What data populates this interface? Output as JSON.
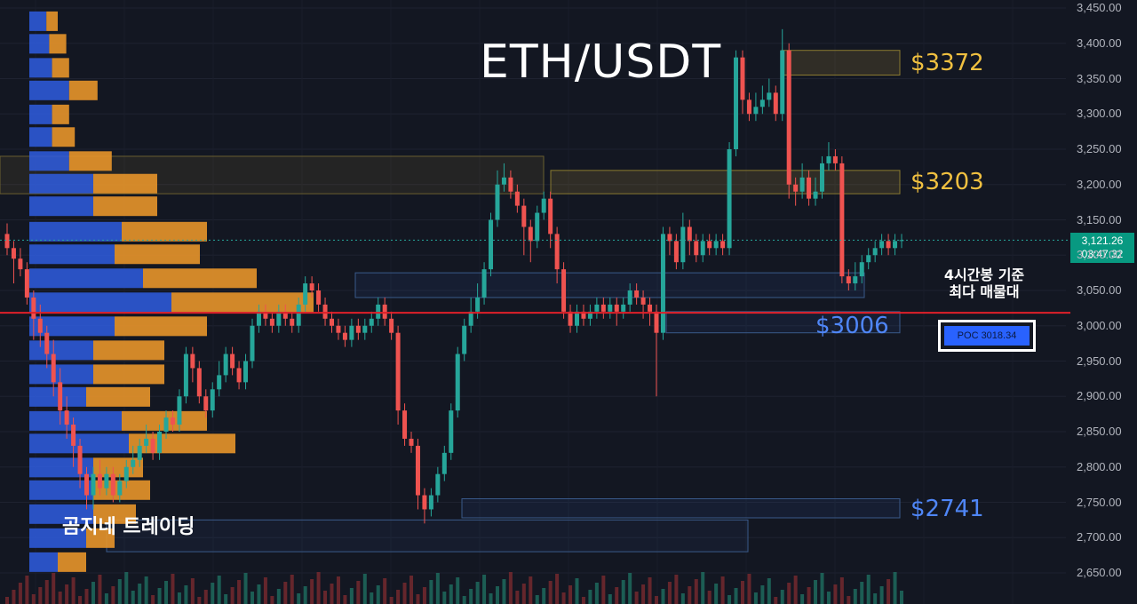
{
  "title": "ETH/USDT",
  "watermark": "곰지네 트레이딩",
  "annotation": {
    "line1": "4시간봉 기준",
    "line2": "최다 매물대"
  },
  "poc_label": "POC  3018.34",
  "price_tag": {
    "price": "3,121.26",
    "countdown": "03:47:32"
  },
  "levels": [
    {
      "label": "$3372",
      "price": 3372,
      "color": "#f0c040"
    },
    {
      "label": "$3203",
      "price": 3203,
      "color": "#f0c040"
    },
    {
      "label": "$3006",
      "price": 3006,
      "color": "#4f86f7"
    },
    {
      "label": "$2741",
      "price": 2741,
      "color": "#4f86f7"
    }
  ],
  "chart_data": {
    "type": "candlestick",
    "title": "ETH/USDT",
    "y_ticks": [
      "3,450.00",
      "3,400.00",
      "3,350.00",
      "3,300.00",
      "3,250.00",
      "3,200.00",
      "3,150.00",
      "3,100.00",
      "3,050.00",
      "3,000.00",
      "2,950.00",
      "2,900.00",
      "2,850.00",
      "2,800.00",
      "2,750.00",
      "2,700.00",
      "2,650.00"
    ],
    "ylim": [
      2630,
      3460
    ],
    "poc": 3018.34,
    "last_price": 3121.26,
    "zones": [
      {
        "low": 3355,
        "high": 3390,
        "kind": "resistance"
      },
      {
        "low": 3187,
        "high": 3220,
        "kind": "resistance"
      },
      {
        "low": 3187,
        "high": 3240,
        "kind": "supply-wide"
      },
      {
        "low": 3040,
        "high": 3075,
        "kind": "demand"
      },
      {
        "low": 2990,
        "high": 3020,
        "kind": "demand"
      },
      {
        "low": 2728,
        "high": 2755,
        "kind": "demand"
      },
      {
        "low": 2680,
        "high": 2725,
        "kind": "demand-wide"
      }
    ],
    "volume_profile": [
      {
        "price": 3430,
        "buy": 12,
        "sell": 8
      },
      {
        "price": 3398,
        "buy": 14,
        "sell": 12
      },
      {
        "price": 3364,
        "buy": 16,
        "sell": 12
      },
      {
        "price": 3332,
        "buy": 28,
        "sell": 20
      },
      {
        "price": 3298,
        "buy": 16,
        "sell": 12
      },
      {
        "price": 3266,
        "buy": 16,
        "sell": 16
      },
      {
        "price": 3232,
        "buy": 28,
        "sell": 30
      },
      {
        "price": 3200,
        "buy": 45,
        "sell": 45
      },
      {
        "price": 3168,
        "buy": 45,
        "sell": 45
      },
      {
        "price": 3132,
        "buy": 65,
        "sell": 60
      },
      {
        "price": 3100,
        "buy": 60,
        "sell": 60
      },
      {
        "price": 3066,
        "buy": 80,
        "sell": 80
      },
      {
        "price": 3032,
        "buy": 100,
        "sell": 100
      },
      {
        "price": 2998,
        "buy": 60,
        "sell": 65
      },
      {
        "price": 2964,
        "buy": 45,
        "sell": 50
      },
      {
        "price": 2930,
        "buy": 45,
        "sell": 50
      },
      {
        "price": 2898,
        "buy": 40,
        "sell": 45
      },
      {
        "price": 2864,
        "buy": 65,
        "sell": 60
      },
      {
        "price": 2832,
        "buy": 70,
        "sell": 75
      },
      {
        "price": 2798,
        "buy": 45,
        "sell": 35
      },
      {
        "price": 2766,
        "buy": 45,
        "sell": 40
      },
      {
        "price": 2732,
        "buy": 45,
        "sell": 30
      },
      {
        "price": 2698,
        "buy": 40,
        "sell": 20
      },
      {
        "price": 2664,
        "buy": 20,
        "sell": 20
      }
    ],
    "candles": [
      [
        3130,
        3110,
        3145,
        3100
      ],
      [
        3110,
        3095,
        3120,
        3060
      ],
      [
        3095,
        3080,
        3110,
        3070
      ],
      [
        3080,
        3040,
        3090,
        3030
      ],
      [
        3040,
        3010,
        3050,
        2980
      ],
      [
        3010,
        2990,
        3030,
        2970
      ],
      [
        2990,
        2960,
        3000,
        2940
      ],
      [
        2960,
        2920,
        2980,
        2900
      ],
      [
        2920,
        2880,
        2940,
        2860
      ],
      [
        2880,
        2860,
        2900,
        2840
      ],
      [
        2860,
        2830,
        2870,
        2800
      ],
      [
        2830,
        2790,
        2840,
        2770
      ],
      [
        2790,
        2760,
        2800,
        2740
      ],
      [
        2760,
        2790,
        2800,
        2740
      ],
      [
        2790,
        2770,
        2810,
        2760
      ],
      [
        2770,
        2790,
        2800,
        2760
      ],
      [
        2790,
        2760,
        2800,
        2750
      ],
      [
        2760,
        2780,
        2790,
        2750
      ],
      [
        2780,
        2800,
        2810,
        2770
      ],
      [
        2800,
        2810,
        2830,
        2790
      ],
      [
        2810,
        2830,
        2840,
        2800
      ],
      [
        2830,
        2840,
        2860,
        2820
      ],
      [
        2840,
        2820,
        2850,
        2810
      ],
      [
        2820,
        2850,
        2860,
        2810
      ],
      [
        2850,
        2870,
        2880,
        2840
      ],
      [
        2870,
        2860,
        2880,
        2850
      ],
      [
        2860,
        2900,
        2910,
        2850
      ],
      [
        2900,
        2960,
        2970,
        2890
      ],
      [
        2960,
        2940,
        2970,
        2920
      ],
      [
        2940,
        2900,
        2950,
        2890
      ],
      [
        2900,
        2880,
        2910,
        2870
      ],
      [
        2880,
        2910,
        2920,
        2870
      ],
      [
        2910,
        2930,
        2950,
        2900
      ],
      [
        2930,
        2960,
        2970,
        2920
      ],
      [
        2960,
        2940,
        2970,
        2930
      ],
      [
        2940,
        2920,
        2950,
        2910
      ],
      [
        2920,
        2950,
        2960,
        2910
      ],
      [
        2950,
        3000,
        3010,
        2940
      ],
      [
        3000,
        3020,
        3030,
        2990
      ],
      [
        3020,
        3010,
        3030,
        3000
      ],
      [
        3010,
        3000,
        3020,
        2990
      ],
      [
        3000,
        3020,
        3030,
        2990
      ],
      [
        3020,
        3010,
        3030,
        3000
      ],
      [
        3010,
        3000,
        3020,
        2990
      ],
      [
        3000,
        3030,
        3040,
        2990
      ],
      [
        3030,
        3060,
        3070,
        3020
      ],
      [
        3060,
        3050,
        3070,
        3040
      ],
      [
        3050,
        3030,
        3060,
        3020
      ],
      [
        3030,
        3010,
        3040,
        3000
      ],
      [
        3010,
        3000,
        3020,
        2990
      ],
      [
        3000,
        2990,
        3010,
        2980
      ],
      [
        2990,
        2980,
        3000,
        2970
      ],
      [
        2980,
        3000,
        3010,
        2970
      ],
      [
        3000,
        2990,
        3010,
        2980
      ],
      [
        2990,
        3000,
        3010,
        2980
      ],
      [
        3000,
        3010,
        3020,
        2990
      ],
      [
        3010,
        3030,
        3040,
        3000
      ],
      [
        3030,
        3010,
        3040,
        3000
      ],
      [
        3010,
        2990,
        3020,
        2980
      ],
      [
        2990,
        2880,
        3000,
        2860
      ],
      [
        2880,
        2840,
        2890,
        2830
      ],
      [
        2840,
        2830,
        2850,
        2820
      ],
      [
        2830,
        2760,
        2840,
        2740
      ],
      [
        2760,
        2740,
        2770,
        2720
      ],
      [
        2740,
        2760,
        2770,
        2730
      ],
      [
        2760,
        2790,
        2800,
        2750
      ],
      [
        2790,
        2820,
        2830,
        2780
      ],
      [
        2820,
        2880,
        2890,
        2810
      ],
      [
        2880,
        2960,
        2970,
        2870
      ],
      [
        2960,
        3000,
        3010,
        2950
      ],
      [
        3000,
        3020,
        3040,
        2990
      ],
      [
        3020,
        3040,
        3060,
        3010
      ],
      [
        3040,
        3080,
        3090,
        3030
      ],
      [
        3080,
        3150,
        3160,
        3070
      ],
      [
        3150,
        3200,
        3220,
        3140
      ],
      [
        3200,
        3210,
        3230,
        3190
      ],
      [
        3210,
        3190,
        3220,
        3180
      ],
      [
        3190,
        3170,
        3200,
        3160
      ],
      [
        3170,
        3140,
        3180,
        3100
      ],
      [
        3140,
        3120,
        3150,
        3090
      ],
      [
        3120,
        3160,
        3170,
        3110
      ],
      [
        3160,
        3180,
        3190,
        3150
      ],
      [
        3180,
        3130,
        3190,
        3110
      ],
      [
        3130,
        3080,
        3140,
        3060
      ],
      [
        3080,
        3020,
        3090,
        3010
      ],
      [
        3020,
        3000,
        3030,
        2990
      ],
      [
        3000,
        3020,
        3030,
        2990
      ],
      [
        3020,
        3010,
        3030,
        3000
      ],
      [
        3010,
        3020,
        3030,
        3000
      ],
      [
        3020,
        3030,
        3040,
        3010
      ],
      [
        3030,
        3020,
        3040,
        3010
      ],
      [
        3020,
        3030,
        3040,
        3010
      ],
      [
        3030,
        3020,
        3040,
        3000
      ],
      [
        3020,
        3030,
        3040,
        3010
      ],
      [
        3030,
        3050,
        3060,
        3020
      ],
      [
        3050,
        3040,
        3060,
        3030
      ],
      [
        3040,
        3030,
        3050,
        3010
      ],
      [
        3030,
        3020,
        3040,
        3000
      ],
      [
        3020,
        2990,
        3030,
        2900
      ],
      [
        2990,
        3130,
        3140,
        2980
      ],
      [
        3130,
        3120,
        3140,
        3100
      ],
      [
        3120,
        3090,
        3130,
        3080
      ],
      [
        3090,
        3140,
        3160,
        3080
      ],
      [
        3140,
        3120,
        3150,
        3100
      ],
      [
        3120,
        3100,
        3130,
        3090
      ],
      [
        3100,
        3120,
        3130,
        3090
      ],
      [
        3120,
        3110,
        3130,
        3100
      ],
      [
        3110,
        3120,
        3130,
        3100
      ],
      [
        3120,
        3110,
        3130,
        3100
      ],
      [
        3110,
        3250,
        3260,
        3100
      ],
      [
        3250,
        3380,
        3390,
        3240
      ],
      [
        3380,
        3320,
        3390,
        3300
      ],
      [
        3320,
        3300,
        3330,
        3290
      ],
      [
        3300,
        3310,
        3330,
        3290
      ],
      [
        3310,
        3320,
        3340,
        3300
      ],
      [
        3320,
        3330,
        3350,
        3310
      ],
      [
        3330,
        3300,
        3340,
        3290
      ],
      [
        3300,
        3390,
        3420,
        3290
      ],
      [
        3390,
        3200,
        3400,
        3180
      ],
      [
        3200,
        3190,
        3210,
        3170
      ],
      [
        3190,
        3210,
        3230,
        3180
      ],
      [
        3210,
        3180,
        3220,
        3170
      ],
      [
        3180,
        3190,
        3210,
        3170
      ],
      [
        3190,
        3230,
        3240,
        3180
      ],
      [
        3230,
        3240,
        3260,
        3220
      ],
      [
        3240,
        3230,
        3250,
        3220
      ],
      [
        3230,
        3070,
        3240,
        3060
      ],
      [
        3070,
        3060,
        3080,
        3050
      ],
      [
        3060,
        3070,
        3090,
        3050
      ],
      [
        3070,
        3090,
        3100,
        3060
      ],
      [
        3090,
        3100,
        3110,
        3080
      ],
      [
        3100,
        3110,
        3120,
        3090
      ],
      [
        3110,
        3120,
        3130,
        3100
      ],
      [
        3120,
        3110,
        3130,
        3100
      ],
      [
        3110,
        3120,
        3130,
        3100
      ],
      [
        3120,
        3121.26,
        3130,
        3110
      ]
    ]
  }
}
